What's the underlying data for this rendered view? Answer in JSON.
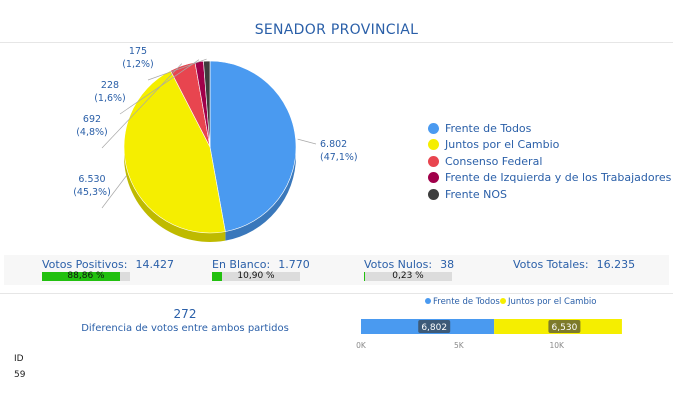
{
  "title": "SENADOR PROVINCIAL",
  "chart_data": [
    {
      "type": "pie",
      "categories": [
        "Frente de Todos",
        "Juntos por el Cambio",
        "Consenso Federal",
        "Frente de Izquierda y de los Trabajadores",
        "Frente NOS"
      ],
      "values": [
        6802,
        6530,
        692,
        228,
        175
      ],
      "value_labels": [
        "6.802",
        "6.530",
        "692",
        "228",
        "175"
      ],
      "percent_labels": [
        "(47,1%)",
        "(45,3%)",
        "(4,8%)",
        "(1,6%)",
        "(1,2%)"
      ],
      "colors": [
        "#4a9af0",
        "#f5ee00",
        "#e8454f",
        "#a0004a",
        "#3d3d3d"
      ],
      "legend_position": "right"
    },
    {
      "type": "bar",
      "orientation": "horizontal",
      "stacked": true,
      "series": [
        {
          "name": "Frente de Todos",
          "values": [
            6802
          ],
          "label": "6,802",
          "color": "#4a9af0"
        },
        {
          "name": "Juntos por el Cambio",
          "values": [
            6530
          ],
          "label": "6,530",
          "color": "#f5ee00"
        }
      ],
      "xlim": [
        0,
        14000
      ],
      "ticks": [
        {
          "value": 0,
          "label": "0K"
        },
        {
          "value": 5000,
          "label": "5K"
        },
        {
          "value": 10000,
          "label": "10K"
        }
      ],
      "legend_position": "top"
    }
  ],
  "stats": {
    "positivos": {
      "label": "Votos Positivos:",
      "value": "14.427",
      "percent": 88.86,
      "percent_label": "88,86 %"
    },
    "blanco": {
      "label": "En Blanco:",
      "value": "1.770",
      "percent": 10.9,
      "percent_label": "10,90 %"
    },
    "nulos": {
      "label": "Votos Nulos:",
      "value": "38",
      "percent": 0.23,
      "percent_label": "0,23 %"
    },
    "totales": {
      "label": "Votos Totales:",
      "value": "16.235"
    }
  },
  "difference": {
    "value": "272",
    "label": "Diferencia de votos entre ambos partidos"
  },
  "id_field": {
    "label": "ID",
    "value": "59"
  }
}
